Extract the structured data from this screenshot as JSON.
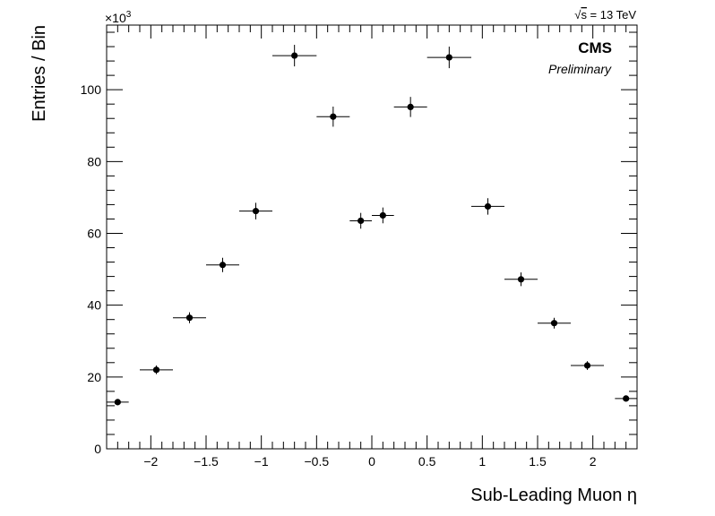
{
  "chart_data": {
    "type": "scatter",
    "xlabel": "Sub-Leading Muon η",
    "ylabel": "Entries / Bin",
    "y_multiplier": "×10",
    "y_multiplier_exp": "3",
    "xlim": [
      -2.4,
      2.4
    ],
    "ylim": [
      0,
      118
    ],
    "x_ticks": [
      -2,
      -1.5,
      -1,
      -0.5,
      0,
      0.5,
      1,
      1.5,
      2
    ],
    "x_tick_labels": [
      "−2",
      "−1.5",
      "−1",
      "−0.5",
      "0",
      "0.5",
      "1",
      "1.5",
      "2"
    ],
    "y_ticks": [
      0,
      20,
      40,
      60,
      80,
      100
    ],
    "y_tick_labels": [
      "0",
      "20",
      "40",
      "60",
      "80",
      "100"
    ],
    "grid": false,
    "marker_color": "#000000",
    "points": [
      {
        "x": -2.3,
        "y": 13.0,
        "xerr": 0.1,
        "yerr": 0.6
      },
      {
        "x": -1.95,
        "y": 22.0,
        "xerr": 0.15,
        "yerr": 1.2
      },
      {
        "x": -1.65,
        "y": 36.5,
        "xerr": 0.15,
        "yerr": 1.5
      },
      {
        "x": -1.35,
        "y": 51.2,
        "xerr": 0.15,
        "yerr": 2.0
      },
      {
        "x": -1.05,
        "y": 66.2,
        "xerr": 0.15,
        "yerr": 2.3
      },
      {
        "x": -0.7,
        "y": 109.5,
        "xerr": 0.2,
        "yerr": 3.0
      },
      {
        "x": -0.35,
        "y": 92.5,
        "xerr": 0.15,
        "yerr": 2.8
      },
      {
        "x": -0.1,
        "y": 63.5,
        "xerr": 0.1,
        "yerr": 2.2
      },
      {
        "x": 0.1,
        "y": 65.0,
        "xerr": 0.1,
        "yerr": 2.2
      },
      {
        "x": 0.35,
        "y": 95.2,
        "xerr": 0.15,
        "yerr": 2.8
      },
      {
        "x": 0.7,
        "y": 109.0,
        "xerr": 0.2,
        "yerr": 3.0
      },
      {
        "x": 1.05,
        "y": 67.5,
        "xerr": 0.15,
        "yerr": 2.3
      },
      {
        "x": 1.35,
        "y": 47.2,
        "xerr": 0.15,
        "yerr": 1.9
      },
      {
        "x": 1.65,
        "y": 35.0,
        "xerr": 0.15,
        "yerr": 1.5
      },
      {
        "x": 1.95,
        "y": 23.2,
        "xerr": 0.15,
        "yerr": 1.2
      },
      {
        "x": 2.3,
        "y": 14.0,
        "xerr": 0.1,
        "yerr": 0.6
      }
    ]
  },
  "labels": {
    "cms": "CMS",
    "preliminary": "Preliminary",
    "sqrt_symbol": "√",
    "energy_s": "s",
    "energy": " = 13 TeV"
  }
}
